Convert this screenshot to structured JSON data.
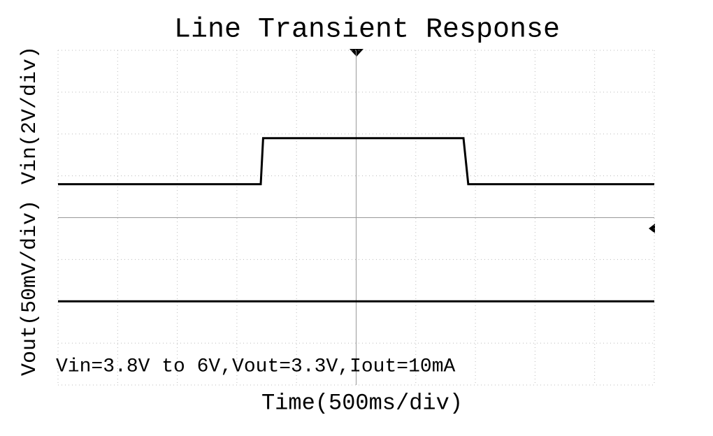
{
  "chart_data": {
    "type": "line",
    "title": "Line Transient Response",
    "y_label": "Vin(2V/div)",
    "y2_label": "Vout(50mV/div)",
    "x_label": "Time(500ms/div)",
    "annotation": "Vin=3.8V to 6V,Vout=3.3V,Iout=10mA",
    "xlim": [
      0,
      5000
    ],
    "ylim": [
      -5.8,
      10.2
    ],
    "y2lim": [
      3.2,
      3.6
    ],
    "grid": true,
    "series": [
      {
        "name": "Vin",
        "color": "#000000",
        "x": [
          0,
          1700,
          1720,
          3400,
          3440,
          5000
        ],
        "values": [
          3.8,
          3.8,
          6,
          6,
          3.8,
          3.8
        ]
      },
      {
        "name": "Vout",
        "color": "#000000",
        "axis": "y2",
        "x": [
          0,
          5000
        ],
        "values": [
          3.3,
          3.3
        ]
      }
    ]
  }
}
